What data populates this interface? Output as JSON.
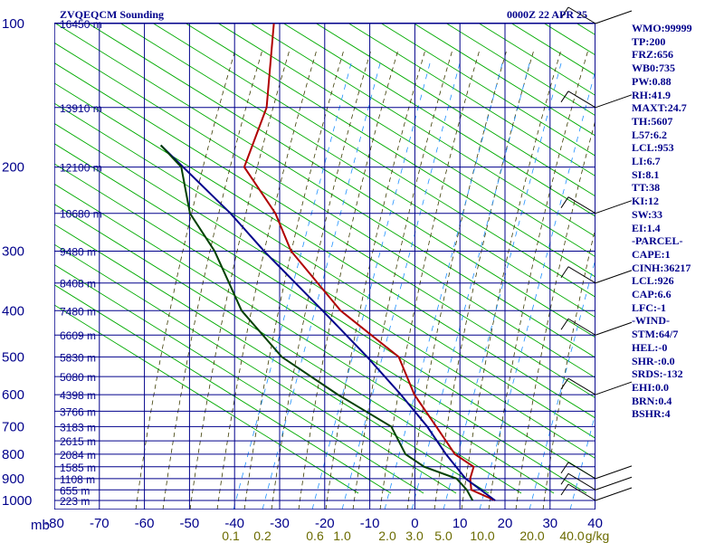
{
  "header": {
    "station": "ZVQEQCM Sounding",
    "time": "0000Z 22 APR 25"
  },
  "indices": [
    "WMO:99999",
    "TP:200",
    "FRZ:656",
    "WB0:735",
    "PW:0.88",
    "RH:41.9",
    "MAXT:24.7",
    "TH:5607",
    "L57:6.2",
    "LCL:953",
    "LI:6.7",
    "SI:8.1",
    "TT:38",
    "KI:12",
    "SW:33",
    "EI:1.4",
    "-PARCEL-",
    "CAPE:1",
    "CINH:36217",
    "LCL:926",
    "CAP:6.6",
    "LFC:-1",
    "-WIND-",
    "STM:64/7",
    "HEL:-0",
    "SHR-:0.0",
    "SRDS:-132",
    "EHI:0.0",
    "BRN:0.4",
    "BSHR:4"
  ],
  "chart_data": {
    "type": "line",
    "title": "",
    "xlabel": "",
    "ylabel": "mb",
    "xlim": [
      -80,
      40
    ],
    "ylim": [
      1000,
      100
    ],
    "y_scale": "log (skew-T)",
    "pressure_ticks": [
      100,
      200,
      300,
      400,
      500,
      600,
      700,
      800,
      900,
      1000
    ],
    "temperature_ticks": [
      -80,
      -70,
      -60,
      -50,
      -40,
      -30,
      -20,
      -10,
      0,
      10,
      20,
      30,
      40
    ],
    "temperature_tick_labels": [
      "-80",
      "-70",
      "-60",
      "-50",
      "-40",
      "-30",
      "-20",
      "-10",
      "0",
      "10",
      "20",
      "30",
      "40"
    ],
    "mixing_ratio_labels": [
      "0.1",
      "0.2",
      "0.6",
      "1.0",
      "2.0",
      "3.0",
      "5.0",
      "10.0",
      "20.0",
      "40.0",
      "g/kg"
    ],
    "height_labels": [
      {
        "p": 100,
        "label": "16450 m"
      },
      {
        "p": 150,
        "label": "13910 m"
      },
      {
        "p": 200,
        "label": "12100 m"
      },
      {
        "p": 250,
        "label": "10680 m"
      },
      {
        "p": 300,
        "label": "9480 m"
      },
      {
        "p": 350,
        "label": "8408 m"
      },
      {
        "p": 400,
        "label": "7480 m"
      },
      {
        "p": 450,
        "label": "6609 m"
      },
      {
        "p": 500,
        "label": "5830 m"
      },
      {
        "p": 550,
        "label": "5080 m"
      },
      {
        "p": 600,
        "label": "4398 m"
      },
      {
        "p": 650,
        "label": "3766 m"
      },
      {
        "p": 700,
        "label": "3183 m"
      },
      {
        "p": 750,
        "label": "2615 m"
      },
      {
        "p": 800,
        "label": "2084 m"
      },
      {
        "p": 850,
        "label": "1585 m"
      },
      {
        "p": 900,
        "label": "1108 m"
      },
      {
        "p": 950,
        "label": "655 m"
      },
      {
        "p": 1000,
        "label": "223 m"
      }
    ],
    "series": [
      {
        "color": "#b00000",
        "points": [
          {
            "p": 100,
            "x": -63
          },
          {
            "p": 150,
            "x": -59
          },
          {
            "p": 200,
            "x": -60
          },
          {
            "p": 250,
            "x": -50
          },
          {
            "p": 300,
            "x": -44
          },
          {
            "p": 400,
            "x": -29
          },
          {
            "p": 500,
            "x": -13
          },
          {
            "p": 600,
            "x": -7
          },
          {
            "p": 700,
            "x": 0
          },
          {
            "p": 800,
            "x": 6
          },
          {
            "p": 850,
            "x": 11
          },
          {
            "p": 900,
            "x": 11
          },
          {
            "p": 950,
            "x": 12
          },
          {
            "p": 1000,
            "x": 18
          }
        ]
      },
      {
        "color": "#00008b",
        "points": [
          {
            "p": 180,
            "x": -80
          },
          {
            "p": 250,
            "x": -60
          },
          {
            "p": 300,
            "x": -50
          },
          {
            "p": 400,
            "x": -33
          },
          {
            "p": 500,
            "x": -20
          },
          {
            "p": 600,
            "x": -10
          },
          {
            "p": 700,
            "x": -2
          },
          {
            "p": 800,
            "x": 4
          },
          {
            "p": 900,
            "x": 10
          },
          {
            "p": 1000,
            "x": 18
          }
        ]
      },
      {
        "color": "#004000",
        "points": [
          {
            "p": 180,
            "x": -80
          },
          {
            "p": 200,
            "x": -74
          },
          {
            "p": 250,
            "x": -69
          },
          {
            "p": 300,
            "x": -61
          },
          {
            "p": 400,
            "x": -51
          },
          {
            "p": 500,
            "x": -39
          },
          {
            "p": 600,
            "x": -24
          },
          {
            "p": 700,
            "x": -10
          },
          {
            "p": 800,
            "x": -5
          },
          {
            "p": 850,
            "x": 0
          },
          {
            "p": 900,
            "x": 8
          },
          {
            "p": 950,
            "x": 11
          },
          {
            "p": 1000,
            "x": 13
          }
        ]
      }
    ],
    "wind_barbs_levels": [
      100,
      150,
      250,
      350,
      450,
      600,
      900,
      950,
      1000
    ],
    "colors": {
      "frame": "#00008b",
      "isobar": "#00008b",
      "isotherm": "#00008b",
      "dry_adiabat": "#00aa00",
      "moist_adiabat": "#3a3a00",
      "mixing_ratio": "#1e90ff",
      "temperature": "#b00000",
      "parcel": "#00008b",
      "dewpoint": "#004000"
    }
  }
}
